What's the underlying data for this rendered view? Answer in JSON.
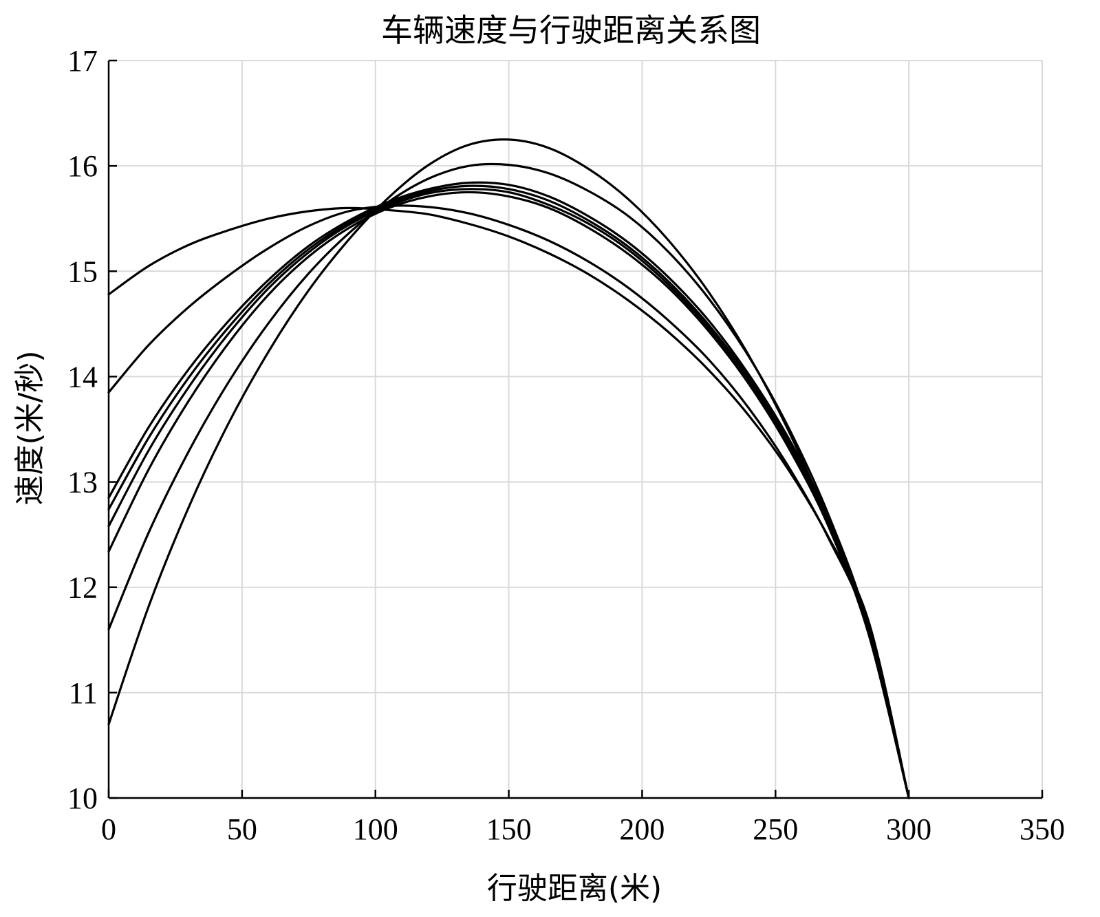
{
  "chart_data": {
    "type": "line",
    "title": "车辆速度与行驶距离关系图",
    "xlabel": "行驶距离(米)",
    "ylabel": "速度(米/秒)",
    "xlim": [
      0,
      350
    ],
    "ylim": [
      10,
      17
    ],
    "xticks": [
      0,
      50,
      100,
      150,
      200,
      250,
      300,
      350
    ],
    "yticks": [
      10,
      11,
      12,
      13,
      14,
      15,
      16,
      17
    ],
    "xtick_labels": [
      "0",
      "50",
      "100",
      "150",
      "200",
      "250",
      "300",
      "350"
    ],
    "ytick_labels": [
      "10",
      "11",
      "12",
      "13",
      "14",
      "15",
      "16",
      "17"
    ],
    "grid": true,
    "line_color": "#000000",
    "series": [
      {
        "x": [
          0,
          15,
          30,
          45,
          60,
          75,
          90,
          105,
          120,
          135,
          150,
          165,
          180,
          195,
          210,
          225,
          240,
          255,
          270,
          285,
          300
        ],
        "values": [
          14.78,
          15.05,
          15.25,
          15.39,
          15.5,
          15.57,
          15.6,
          15.58,
          15.54,
          15.45,
          15.33,
          15.17,
          14.97,
          14.72,
          14.42,
          14.06,
          13.63,
          13.11,
          12.47,
          11.67,
          10.0
        ]
      },
      {
        "x": [
          0,
          15,
          30,
          45,
          60,
          75,
          90,
          105,
          120,
          135,
          150,
          165,
          180,
          195,
          210,
          225,
          240,
          255,
          270,
          285,
          300
        ],
        "values": [
          13.85,
          14.3,
          14.66,
          14.96,
          15.22,
          15.43,
          15.57,
          15.62,
          15.61,
          15.55,
          15.44,
          15.29,
          15.09,
          14.84,
          14.53,
          14.16,
          13.7,
          13.14,
          12.46,
          11.6,
          10.0
        ]
      },
      {
        "x": [
          0,
          15,
          30,
          45,
          60,
          75,
          90,
          105,
          120,
          135,
          150,
          165,
          180,
          195,
          210,
          225,
          240,
          255,
          270,
          285,
          300
        ],
        "values": [
          12.85,
          13.52,
          14.07,
          14.53,
          14.92,
          15.24,
          15.48,
          15.66,
          15.78,
          15.84,
          15.82,
          15.71,
          15.52,
          15.27,
          14.94,
          14.53,
          14.02,
          13.41,
          12.65,
          11.61,
          10.0
        ]
      },
      {
        "x": [
          0,
          15,
          30,
          45,
          60,
          75,
          90,
          105,
          120,
          135,
          150,
          165,
          180,
          195,
          210,
          225,
          240,
          255,
          270,
          285,
          300
        ],
        "values": [
          12.74,
          13.42,
          13.99,
          14.47,
          14.88,
          15.21,
          15.46,
          15.64,
          15.76,
          15.81,
          15.78,
          15.67,
          15.48,
          15.23,
          14.9,
          14.49,
          13.99,
          13.38,
          12.62,
          11.59,
          10.0
        ]
      },
      {
        "x": [
          0,
          15,
          30,
          45,
          60,
          75,
          90,
          105,
          120,
          135,
          150,
          165,
          180,
          195,
          210,
          225,
          240,
          255,
          270,
          285,
          300
        ],
        "values": [
          12.58,
          13.3,
          13.9,
          14.41,
          14.84,
          15.18,
          15.44,
          15.62,
          15.74,
          15.78,
          15.75,
          15.63,
          15.45,
          15.2,
          14.87,
          14.46,
          13.96,
          13.35,
          12.6,
          11.57,
          10.0
        ]
      },
      {
        "x": [
          0,
          15,
          30,
          45,
          60,
          75,
          90,
          105,
          120,
          135,
          150,
          165,
          180,
          195,
          210,
          225,
          240,
          255,
          270,
          285,
          300
        ],
        "values": [
          12.34,
          13.12,
          13.77,
          14.32,
          14.78,
          15.14,
          15.41,
          15.6,
          15.71,
          15.75,
          15.71,
          15.6,
          15.41,
          15.16,
          14.84,
          14.43,
          13.93,
          13.32,
          12.57,
          11.55,
          10.0
        ]
      },
      {
        "x": [
          0,
          15,
          30,
          45,
          60,
          75,
          90,
          105,
          120,
          135,
          150,
          165,
          180,
          195,
          210,
          225,
          240,
          255,
          270,
          285,
          300
        ],
        "values": [
          11.6,
          12.52,
          13.29,
          13.95,
          14.51,
          14.98,
          15.36,
          15.66,
          15.88,
          16.0,
          16.01,
          15.93,
          15.76,
          15.52,
          15.18,
          14.74,
          14.19,
          13.51,
          12.68,
          11.62,
          10.0
        ]
      },
      {
        "x": [
          0,
          15,
          30,
          45,
          60,
          75,
          90,
          105,
          120,
          135,
          150,
          165,
          180,
          195,
          210,
          225,
          240,
          255,
          270,
          285,
          300
        ],
        "values": [
          10.7,
          11.82,
          12.76,
          13.56,
          14.24,
          14.82,
          15.3,
          15.7,
          16.01,
          16.2,
          16.25,
          16.17,
          15.97,
          15.68,
          15.29,
          14.8,
          14.2,
          13.48,
          12.61,
          11.55,
          10.0
        ]
      }
    ]
  }
}
